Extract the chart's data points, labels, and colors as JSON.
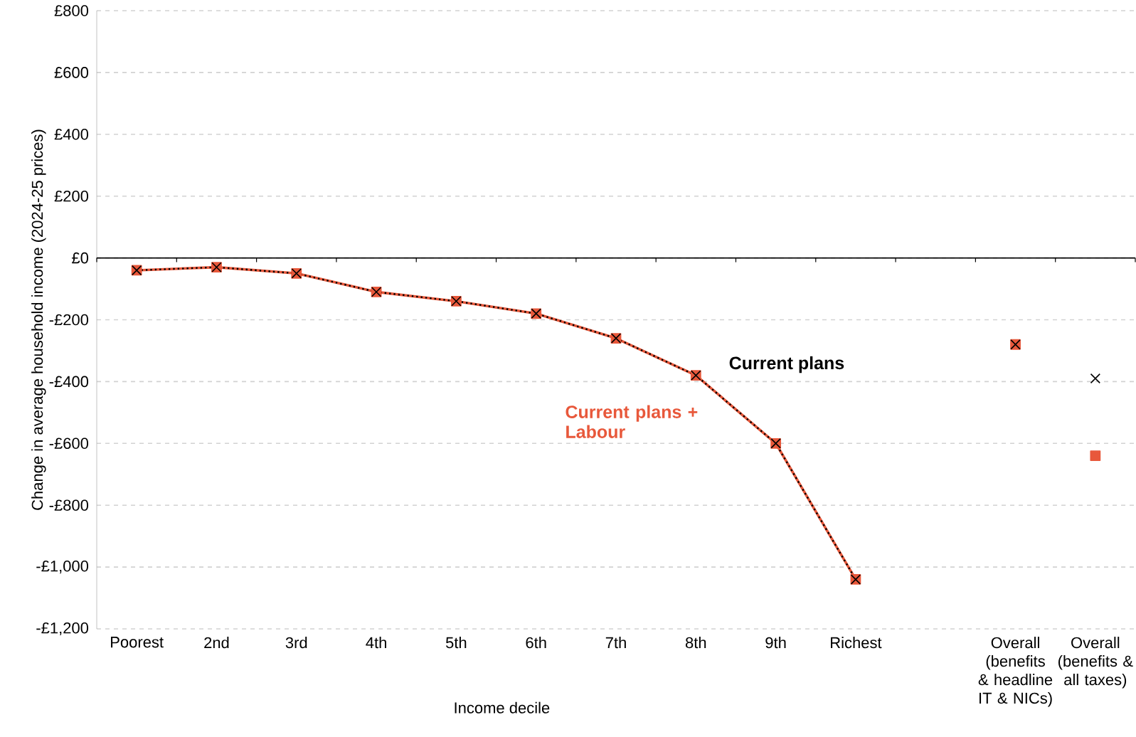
{
  "chart_data": {
    "type": "line",
    "xlabel": "Income decile",
    "ylabel": "Change in average household income (2024-25 prices)",
    "categories": [
      "Poorest",
      "2nd",
      "3rd",
      "4th",
      "5th",
      "6th",
      "7th",
      "8th",
      "9th",
      "Richest",
      null,
      "Overall (benefits & headline IT & NICs)",
      "Overall (benefits & all taxes)"
    ],
    "series": [
      {
        "name": "Current plans + Labour",
        "color": "#e8583b",
        "marker": "square",
        "line_style": "solid",
        "values": [
          -40,
          -30,
          -50,
          -110,
          -140,
          -180,
          -260,
          -380,
          -600,
          -1040,
          null,
          null,
          null
        ]
      },
      {
        "name": "Current plans",
        "color": "#000000",
        "marker": "cross",
        "line_style": "dotted",
        "values": [
          -40,
          -30,
          -50,
          -110,
          -140,
          -180,
          -260,
          -380,
          -600,
          -1040,
          null,
          null,
          null
        ]
      },
      {
        "type": "scatter",
        "color": "#e8583b",
        "marker": "square",
        "values": [
          null,
          null,
          null,
          null,
          null,
          null,
          null,
          null,
          null,
          null,
          null,
          -280,
          -640
        ]
      },
      {
        "type": "scatter",
        "color": "#000000",
        "marker": "cross",
        "values": [
          null,
          null,
          null,
          null,
          null,
          null,
          null,
          null,
          null,
          null,
          null,
          -280,
          -390
        ]
      }
    ],
    "ylim": [
      -1200,
      800
    ],
    "yticks": [
      {
        "value": -1200,
        "label": "-£1,200"
      },
      {
        "value": -1000,
        "label": "-£1,000"
      },
      {
        "value": -800,
        "label": "-£800"
      },
      {
        "value": -600,
        "label": "-£600"
      },
      {
        "value": -400,
        "label": "-£400"
      },
      {
        "value": -200,
        "label": "-£200"
      },
      {
        "value": 0,
        "label": "£0"
      },
      {
        "value": 200,
        "label": "£200"
      },
      {
        "value": 400,
        "label": "£400"
      },
      {
        "value": 600,
        "label": "£600"
      },
      {
        "value": 800,
        "label": "£800"
      }
    ],
    "grid": "y"
  }
}
